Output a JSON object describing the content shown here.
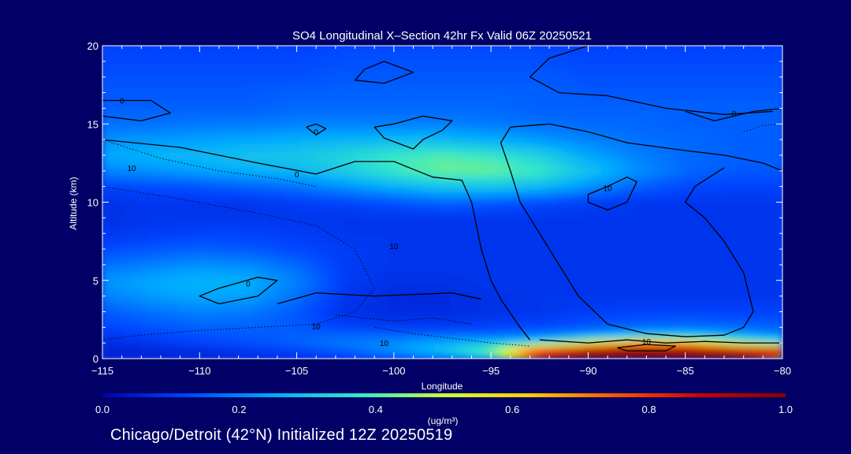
{
  "chart_data": {
    "type": "heatmap",
    "title": "SO4 Longitudinal X–Section 42hr  Fx Valid 06Z 20250521",
    "xlabel": "Longitude",
    "ylabel": "Altitude (km)",
    "xlim": [
      -115,
      -80
    ],
    "ylim": [
      0,
      20
    ],
    "x_ticks": [
      -115,
      -110,
      -105,
      -100,
      -95,
      -90,
      -85,
      -80
    ],
    "x_tick_labels": [
      "−115",
      "−110",
      "−105",
      "−100",
      "−95",
      "−90",
      "−85",
      "−80"
    ],
    "y_ticks": [
      0,
      5,
      10,
      15,
      20
    ],
    "y_tick_labels": [
      "0",
      "5",
      "10",
      "15",
      "20"
    ],
    "colorbar": {
      "min": 0.0,
      "max": 1.0,
      "ticks": [
        0.0,
        0.2,
        0.4,
        0.6,
        0.8,
        1.0
      ],
      "tick_labels": [
        "0.0",
        "0.2",
        "0.4",
        "0.6",
        "0.8",
        "1.0"
      ],
      "unit_label": "(ug/m³)",
      "colors": [
        "#0000aa",
        "#0044ff",
        "#00aaff",
        "#33e6cc",
        "#ccff33",
        "#ffcc00",
        "#ff5500",
        "#cc0000",
        "#880000"
      ]
    },
    "field_x": [
      -115,
      -112.5,
      -110,
      -107.5,
      -105,
      -102.5,
      -100,
      -97.5,
      -95,
      -92.5,
      -90,
      -87.5,
      -85,
      -82.5,
      -80
    ],
    "field_y": [
      0,
      0.5,
      1,
      1.5,
      2,
      3,
      4,
      5,
      6,
      7,
      8,
      9,
      10,
      11,
      12,
      13,
      14,
      15,
      16,
      17,
      18,
      19,
      20
    ],
    "field_values": [
      [
        0.05,
        0.05,
        0.05,
        0.06,
        0.07,
        0.09,
        0.12,
        0.18,
        0.3,
        0.8,
        0.95,
        1.0,
        1.0,
        0.9,
        0.6
      ],
      [
        0.06,
        0.07,
        0.08,
        0.1,
        0.12,
        0.16,
        0.22,
        0.3,
        0.45,
        0.85,
        1.0,
        1.0,
        1.0,
        1.0,
        1.0
      ],
      [
        0.08,
        0.1,
        0.12,
        0.14,
        0.16,
        0.19,
        0.22,
        0.26,
        0.3,
        0.38,
        0.55,
        0.7,
        0.65,
        0.5,
        0.4
      ],
      [
        0.1,
        0.12,
        0.14,
        0.15,
        0.16,
        0.17,
        0.17,
        0.18,
        0.18,
        0.2,
        0.24,
        0.3,
        0.32,
        0.26,
        0.22
      ],
      [
        0.12,
        0.14,
        0.16,
        0.16,
        0.15,
        0.12,
        0.11,
        0.11,
        0.12,
        0.13,
        0.15,
        0.17,
        0.18,
        0.17,
        0.16
      ],
      [
        0.15,
        0.18,
        0.2,
        0.19,
        0.15,
        0.09,
        0.08,
        0.08,
        0.09,
        0.1,
        0.11,
        0.12,
        0.12,
        0.12,
        0.12
      ],
      [
        0.2,
        0.23,
        0.25,
        0.24,
        0.18,
        0.1,
        0.08,
        0.08,
        0.09,
        0.1,
        0.1,
        0.1,
        0.1,
        0.1,
        0.1
      ],
      [
        0.22,
        0.25,
        0.27,
        0.26,
        0.2,
        0.11,
        0.09,
        0.09,
        0.1,
        0.1,
        0.1,
        0.1,
        0.1,
        0.1,
        0.1
      ],
      [
        0.18,
        0.2,
        0.22,
        0.21,
        0.17,
        0.11,
        0.1,
        0.1,
        0.1,
        0.1,
        0.1,
        0.1,
        0.1,
        0.1,
        0.1
      ],
      [
        0.13,
        0.15,
        0.16,
        0.15,
        0.13,
        0.11,
        0.1,
        0.1,
        0.1,
        0.1,
        0.1,
        0.1,
        0.1,
        0.1,
        0.1
      ],
      [
        0.1,
        0.11,
        0.12,
        0.12,
        0.11,
        0.1,
        0.1,
        0.1,
        0.1,
        0.1,
        0.1,
        0.1,
        0.1,
        0.1,
        0.1
      ],
      [
        0.09,
        0.1,
        0.1,
        0.1,
        0.1,
        0.1,
        0.1,
        0.1,
        0.1,
        0.1,
        0.1,
        0.1,
        0.1,
        0.1,
        0.1
      ],
      [
        0.09,
        0.1,
        0.1,
        0.1,
        0.11,
        0.12,
        0.14,
        0.16,
        0.15,
        0.13,
        0.11,
        0.1,
        0.1,
        0.1,
        0.1
      ],
      [
        0.12,
        0.13,
        0.14,
        0.16,
        0.18,
        0.22,
        0.26,
        0.3,
        0.3,
        0.28,
        0.22,
        0.16,
        0.13,
        0.12,
        0.12
      ],
      [
        0.2,
        0.22,
        0.24,
        0.26,
        0.28,
        0.32,
        0.38,
        0.42,
        0.42,
        0.38,
        0.3,
        0.22,
        0.17,
        0.15,
        0.15
      ],
      [
        0.25,
        0.27,
        0.28,
        0.3,
        0.31,
        0.34,
        0.38,
        0.4,
        0.38,
        0.33,
        0.25,
        0.2,
        0.17,
        0.16,
        0.16
      ],
      [
        0.22,
        0.23,
        0.24,
        0.25,
        0.26,
        0.27,
        0.28,
        0.28,
        0.26,
        0.23,
        0.2,
        0.18,
        0.17,
        0.16,
        0.16
      ],
      [
        0.18,
        0.18,
        0.19,
        0.19,
        0.2,
        0.2,
        0.2,
        0.2,
        0.19,
        0.18,
        0.17,
        0.17,
        0.16,
        0.16,
        0.16
      ],
      [
        0.16,
        0.16,
        0.16,
        0.16,
        0.17,
        0.17,
        0.17,
        0.17,
        0.17,
        0.16,
        0.16,
        0.16,
        0.16,
        0.16,
        0.16
      ],
      [
        0.15,
        0.15,
        0.15,
        0.15,
        0.16,
        0.16,
        0.16,
        0.16,
        0.16,
        0.16,
        0.15,
        0.15,
        0.15,
        0.15,
        0.15
      ],
      [
        0.14,
        0.14,
        0.14,
        0.14,
        0.14,
        0.15,
        0.15,
        0.15,
        0.15,
        0.15,
        0.14,
        0.14,
        0.14,
        0.14,
        0.14
      ],
      [
        0.13,
        0.13,
        0.13,
        0.13,
        0.13,
        0.14,
        0.14,
        0.14,
        0.14,
        0.14,
        0.13,
        0.13,
        0.13,
        0.13,
        0.13
      ],
      [
        0.12,
        0.12,
        0.12,
        0.12,
        0.12,
        0.13,
        0.13,
        0.13,
        0.13,
        0.13,
        0.12,
        0.12,
        0.12,
        0.12,
        0.12
      ]
    ],
    "contours": [
      {
        "style": "solid",
        "points": [
          [
            -115,
            16.5
          ],
          [
            -112.5,
            16.5
          ],
          [
            -111.5,
            15.7
          ],
          [
            -113,
            15.2
          ],
          [
            -115,
            15.5
          ]
        ]
      },
      {
        "style": "solid",
        "points": [
          [
            -115,
            14.0
          ],
          [
            -111,
            13.5
          ],
          [
            -107,
            12.5
          ],
          [
            -104,
            11.8
          ],
          [
            -102,
            12.6
          ],
          [
            -100,
            12.6
          ],
          [
            -98,
            11.6
          ],
          [
            -96.5,
            11.4
          ],
          [
            -96,
            10.0
          ],
          [
            -95.5,
            7.0
          ],
          [
            -95,
            5.0
          ],
          [
            -94.5,
            3.8
          ],
          [
            -93.5,
            2.0
          ],
          [
            -93,
            1.2
          ]
        ]
      },
      {
        "style": "solid",
        "points": [
          [
            -106,
            3.5
          ],
          [
            -104,
            4.2
          ],
          [
            -101,
            4.0
          ],
          [
            -97,
            4.2
          ],
          [
            -95.5,
            3.8
          ]
        ]
      },
      {
        "style": "solid",
        "points": [
          [
            -109,
            3.5
          ],
          [
            -107,
            4.0
          ],
          [
            -106,
            5.0
          ],
          [
            -107,
            5.2
          ],
          [
            -109,
            4.5
          ],
          [
            -110,
            4.0
          ],
          [
            -109,
            3.5
          ]
        ]
      },
      {
        "style": "solid",
        "points": [
          [
            -104.5,
            14.8
          ],
          [
            -104,
            14.3
          ],
          [
            -103.5,
            14.7
          ],
          [
            -104,
            15.0
          ],
          [
            -104.5,
            14.8
          ]
        ]
      },
      {
        "style": "solid",
        "points": [
          [
            -101.5,
            18.5
          ],
          [
            -100.5,
            19.0
          ],
          [
            -99,
            18.3
          ],
          [
            -100.5,
            17.6
          ],
          [
            -102,
            17.8
          ],
          [
            -101.5,
            18.5
          ]
        ]
      },
      {
        "style": "solid",
        "points": [
          [
            -101,
            14.8
          ],
          [
            -100.5,
            14.1
          ],
          [
            -99,
            13.4
          ],
          [
            -98.5,
            14.0
          ],
          [
            -97.5,
            14.6
          ],
          [
            -97,
            15.2
          ],
          [
            -98.5,
            15.5
          ],
          [
            -100,
            15.0
          ],
          [
            -101,
            14.8
          ]
        ]
      },
      {
        "style": "solid",
        "points": [
          [
            -94,
            14.8
          ],
          [
            -92,
            15.0
          ],
          [
            -90,
            14.5
          ],
          [
            -88,
            13.8
          ],
          [
            -85,
            13.3
          ],
          [
            -83,
            13.0
          ],
          [
            -81,
            12.5
          ],
          [
            -80,
            12.0
          ]
        ]
      },
      {
        "style": "solid",
        "points": [
          [
            -94,
            14.8
          ],
          [
            -94.5,
            13.8
          ],
          [
            -94,
            12.0
          ],
          [
            -93.5,
            10.0
          ],
          [
            -92.5,
            8.0
          ],
          [
            -91.5,
            6.0
          ],
          [
            -90.5,
            4.0
          ],
          [
            -89,
            2.2
          ],
          [
            -87,
            1.6
          ],
          [
            -85,
            1.4
          ],
          [
            -83,
            1.5
          ],
          [
            -82,
            2.0
          ],
          [
            -81.5,
            3.0
          ],
          [
            -82,
            5.5
          ],
          [
            -83,
            7.5
          ],
          [
            -84,
            9.0
          ],
          [
            -85,
            10.0
          ],
          [
            -84.5,
            11.0
          ],
          [
            -83,
            12.2
          ]
        ]
      },
      {
        "style": "solid",
        "points": [
          [
            -90,
            10.5
          ],
          [
            -89,
            11.0
          ],
          [
            -88,
            11.6
          ],
          [
            -87.5,
            11.3
          ],
          [
            -88,
            10.0
          ],
          [
            -89,
            9.5
          ],
          [
            -90,
            10.0
          ],
          [
            -90,
            10.5
          ]
        ]
      },
      {
        "style": "solid",
        "points": [
          [
            -90,
            20.0
          ],
          [
            -92,
            19.2
          ],
          [
            -93,
            18.0
          ],
          [
            -91.5,
            17.0
          ],
          [
            -89,
            16.8
          ],
          [
            -86,
            16.0
          ],
          [
            -83,
            15.6
          ],
          [
            -80.5,
            15.8
          ]
        ]
      },
      {
        "style": "solid",
        "points": [
          [
            -85,
            15.8
          ],
          [
            -83.5,
            15.2
          ],
          [
            -81.5,
            15.8
          ],
          [
            -80,
            16.0
          ]
        ]
      },
      {
        "style": "solid",
        "points": [
          [
            -92.5,
            1.2
          ],
          [
            -90,
            1.0
          ],
          [
            -88,
            1.2
          ],
          [
            -86,
            1.0
          ],
          [
            -84,
            1.1
          ],
          [
            -82,
            1.0
          ],
          [
            -80,
            1.0
          ]
        ]
      },
      {
        "style": "solid",
        "points": [
          [
            -88.5,
            0.7
          ],
          [
            -87,
            0.9
          ],
          [
            -85.5,
            0.8
          ],
          [
            -86,
            0.5
          ],
          [
            -88,
            0.5
          ],
          [
            -88.5,
            0.7
          ]
        ]
      },
      {
        "style": "dotted",
        "points": [
          [
            -115,
            14.0
          ],
          [
            -112,
            12.8
          ],
          [
            -109,
            12.0
          ],
          [
            -106,
            11.5
          ],
          [
            -104,
            11.0
          ]
        ]
      },
      {
        "style": "dotted",
        "points": [
          [
            -115,
            11.0
          ],
          [
            -111,
            10.2
          ],
          [
            -107,
            9.3
          ],
          [
            -104,
            8.5
          ],
          [
            -102,
            7.0
          ],
          [
            -101,
            4.5
          ],
          [
            -102,
            3.0
          ],
          [
            -104,
            2.2
          ],
          [
            -107,
            2.0
          ],
          [
            -110,
            1.8
          ],
          [
            -113,
            1.5
          ],
          [
            -115,
            1.2
          ]
        ]
      },
      {
        "style": "dotted",
        "points": [
          [
            -101,
            2.0
          ],
          [
            -99,
            1.6
          ],
          [
            -97,
            1.3
          ],
          [
            -95,
            1.0
          ],
          [
            -93,
            0.8
          ]
        ]
      },
      {
        "style": "dotted",
        "points": [
          [
            -103,
            2.8
          ],
          [
            -100,
            2.4
          ],
          [
            -98,
            2.6
          ],
          [
            -96,
            2.2
          ]
        ]
      },
      {
        "style": "dotted",
        "points": [
          [
            -82,
            14.5
          ],
          [
            -81,
            14.9
          ],
          [
            -80,
            15.0
          ]
        ]
      }
    ],
    "contour_labels": [
      {
        "text": "0",
        "x": -114,
        "y": 16.5
      },
      {
        "text": "0",
        "x": -104,
        "y": 14.5
      },
      {
        "text": "0",
        "x": -105,
        "y": 11.8
      },
      {
        "text": "0",
        "x": -107.5,
        "y": 4.8
      },
      {
        "text": "0",
        "x": -82.5,
        "y": 15.7
      },
      {
        "text": "10",
        "x": -113.5,
        "y": 12.2
      },
      {
        "text": "10",
        "x": -100,
        "y": 7.2
      },
      {
        "text": "10",
        "x": -89,
        "y": 10.9
      },
      {
        "text": "10",
        "x": -104,
        "y": 2.1
      },
      {
        "text": "10",
        "x": -100.5,
        "y": 1.0
      },
      {
        "text": "10",
        "x": -87,
        "y": 1.1
      }
    ]
  },
  "footer": {
    "caption": "Chicago/Detroit (42°N) Initialized 12Z 20250519"
  }
}
